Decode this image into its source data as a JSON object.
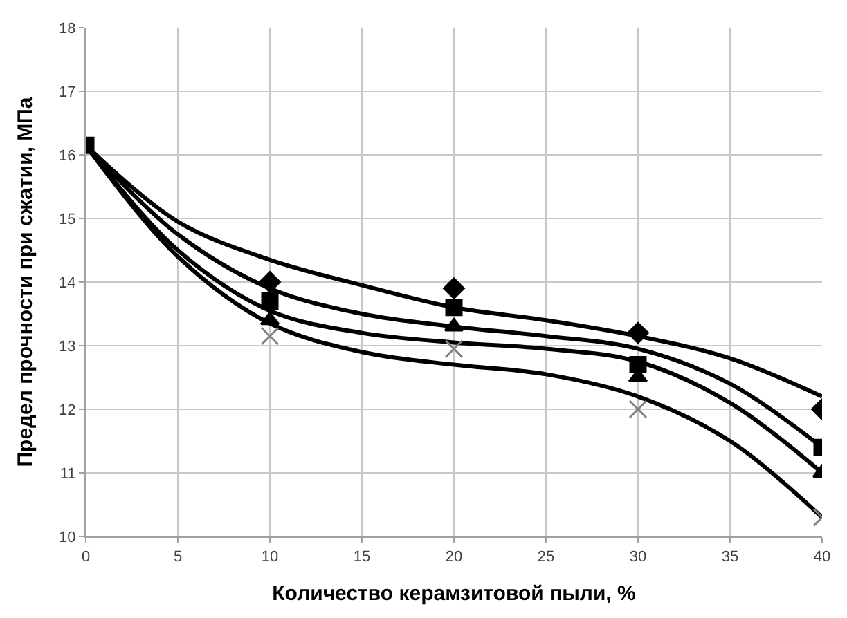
{
  "chart_data": {
    "type": "scatter",
    "xlabel": "Количество керамзитовой пыли, %",
    "ylabel": "Предел прочности при сжатии, МПа",
    "x": [
      0,
      10,
      20,
      30,
      40
    ],
    "xlim": [
      0,
      40
    ],
    "xticks": [
      0,
      5,
      10,
      15,
      20,
      25,
      30,
      35,
      40
    ],
    "ylim": [
      10,
      18
    ],
    "yticks": [
      10,
      11,
      12,
      13,
      14,
      15,
      16,
      17,
      18
    ],
    "grid": true,
    "series": [
      {
        "marker": "diamond",
        "color": "#000000",
        "values": [
          null,
          14.0,
          13.9,
          13.2,
          12.0
        ]
      },
      {
        "marker": "square",
        "color": "#000000",
        "values": [
          16.15,
          13.7,
          13.6,
          12.7,
          11.4
        ]
      },
      {
        "marker": "triangle",
        "color": "#000000",
        "values": [
          null,
          13.4,
          13.3,
          12.5,
          11.0
        ]
      },
      {
        "marker": "cross",
        "color": "#7f7f7f",
        "values": [
          null,
          13.15,
          12.95,
          12.0,
          10.3
        ]
      },
      {
        "type": "line",
        "marker": "none",
        "line_style": "solid",
        "color": "#000000",
        "x": [
          0,
          5,
          10,
          15,
          20,
          25,
          30,
          35,
          40
        ],
        "values": [
          16.15,
          14.95,
          14.35,
          13.95,
          13.6,
          13.4,
          13.15,
          12.8,
          12.2
        ]
      },
      {
        "type": "line",
        "marker": "none",
        "line_style": "solid",
        "color": "#000000",
        "x": [
          0,
          5,
          10,
          15,
          20,
          25,
          30,
          35,
          40
        ],
        "values": [
          16.15,
          14.75,
          13.9,
          13.5,
          13.3,
          13.15,
          12.95,
          12.4,
          11.4
        ]
      },
      {
        "type": "line",
        "marker": "none",
        "line_style": "solid",
        "color": "#000000",
        "x": [
          0,
          5,
          10,
          15,
          20,
          25,
          30,
          35,
          40
        ],
        "values": [
          16.15,
          14.5,
          13.55,
          13.2,
          13.05,
          12.95,
          12.75,
          12.1,
          11.0
        ]
      },
      {
        "type": "line",
        "marker": "none",
        "line_style": "solid",
        "color": "#000000",
        "x": [
          0,
          5,
          10,
          15,
          20,
          25,
          30,
          35,
          40
        ],
        "values": [
          16.15,
          14.4,
          13.35,
          12.9,
          12.7,
          12.55,
          12.2,
          11.5,
          10.3
        ]
      }
    ]
  }
}
